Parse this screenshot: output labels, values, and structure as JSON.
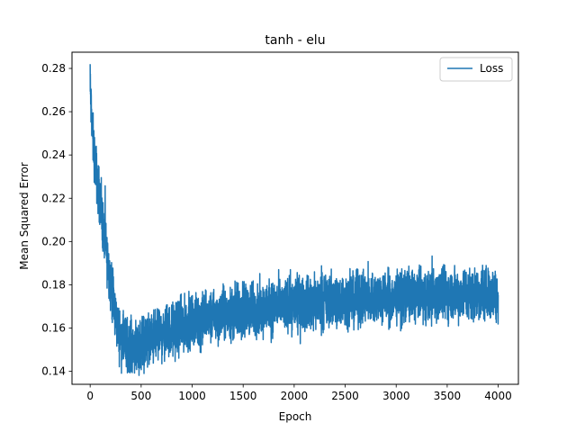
{
  "chart_data": {
    "type": "line",
    "title": "tanh - elu",
    "xlabel": "Epoch",
    "ylabel": "Mean Squared Error",
    "xlim": [
      -178,
      4198
    ],
    "ylim": [
      0.134,
      0.2875
    ],
    "xticks": [
      0,
      500,
      1000,
      1500,
      2000,
      2500,
      3000,
      3500,
      4000
    ],
    "yticks": [
      0.14,
      0.16,
      0.18,
      0.2,
      0.22,
      0.24,
      0.26,
      0.28
    ],
    "legend": {
      "position": "top-right",
      "entries": [
        "Loss"
      ]
    },
    "series": [
      {
        "name": "Loss",
        "color": "#1f77b4",
        "x": [
          0,
          25,
          50,
          75,
          100,
          125,
          150,
          175,
          200,
          225,
          250,
          275,
          300,
          325,
          350,
          375,
          400,
          450,
          500,
          600,
          700,
          800,
          900,
          1000,
          1100,
          1200,
          1300,
          1400,
          1500,
          1600,
          1700,
          1800,
          1900,
          2000,
          2100,
          2200,
          2300,
          2400,
          2500,
          2600,
          2700,
          2800,
          2900,
          3000,
          3100,
          3200,
          3300,
          3400,
          3500,
          3600,
          3700,
          3800,
          3900,
          4000
        ],
        "mean": [
          0.27,
          0.248,
          0.236,
          0.226,
          0.217,
          0.207,
          0.198,
          0.19,
          0.181,
          0.172,
          0.165,
          0.159,
          0.156,
          0.154,
          0.153,
          0.153,
          0.152,
          0.152,
          0.153,
          0.155,
          0.157,
          0.159,
          0.161,
          0.163,
          0.164,
          0.165,
          0.166,
          0.167,
          0.168,
          0.169,
          0.169,
          0.17,
          0.17,
          0.171,
          0.171,
          0.172,
          0.172,
          0.173,
          0.173,
          0.173,
          0.173,
          0.174,
          0.174,
          0.174,
          0.175,
          0.175,
          0.175,
          0.175,
          0.176,
          0.176,
          0.176,
          0.176,
          0.176,
          0.176
        ],
        "spread": [
          0.006,
          0.006,
          0.006,
          0.006,
          0.006,
          0.006,
          0.006,
          0.006,
          0.006,
          0.006,
          0.006,
          0.006,
          0.006,
          0.006,
          0.006,
          0.006,
          0.006,
          0.006,
          0.006,
          0.006,
          0.006,
          0.006,
          0.006,
          0.006,
          0.006,
          0.006,
          0.006,
          0.006,
          0.006,
          0.006,
          0.006,
          0.006,
          0.006,
          0.006,
          0.006,
          0.006,
          0.006,
          0.006,
          0.006,
          0.006,
          0.006,
          0.006,
          0.006,
          0.006,
          0.006,
          0.006,
          0.006,
          0.006,
          0.006,
          0.006,
          0.006,
          0.006,
          0.006,
          0.006
        ],
        "peak": {
          "x": 0,
          "y": 0.282
        },
        "min": {
          "x": 380,
          "y": 0.14
        }
      }
    ]
  }
}
